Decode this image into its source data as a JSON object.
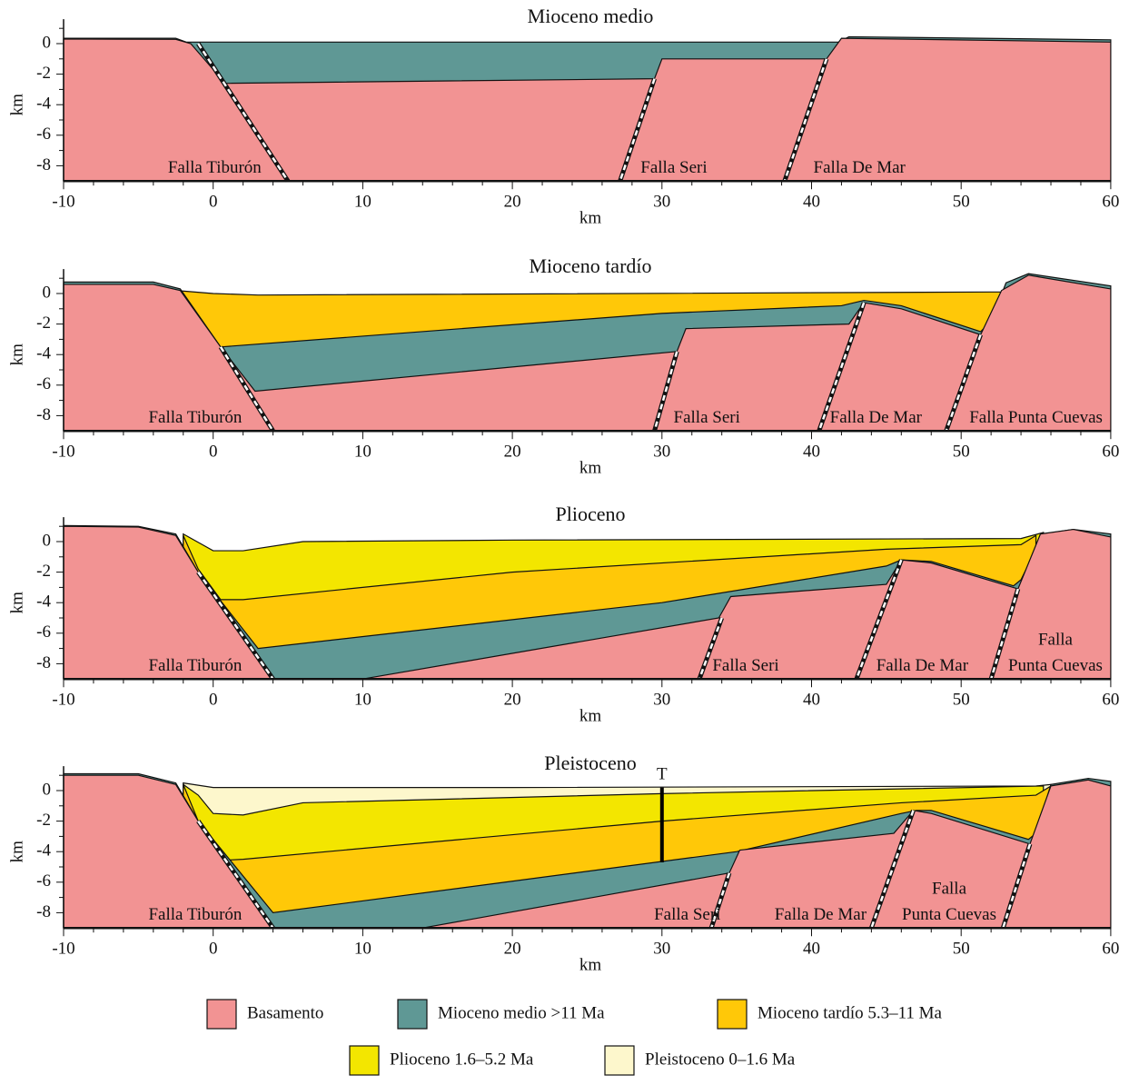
{
  "panels": [
    {
      "title": "Mioceno medio",
      "faults": [
        [
          "Falla Tiburón"
        ],
        [
          "Falla Seri"
        ],
        [
          "Falla De Mar"
        ]
      ]
    },
    {
      "title": "Mioceno tardío",
      "faults": [
        [
          "Falla Tiburón"
        ],
        [
          "Falla Seri"
        ],
        [
          "Falla De Mar"
        ],
        [
          "Falla Punta Cuevas"
        ]
      ]
    },
    {
      "title": "Plioceno",
      "faults": [
        [
          "Falla Tiburón"
        ],
        [
          "Falla Seri"
        ],
        [
          "Falla De Mar"
        ],
        [
          "Falla",
          "Punta Cuevas"
        ]
      ]
    },
    {
      "title": "Pleistoceno",
      "faults": [
        [
          "Falla Tiburón"
        ],
        [
          "Falla Seri"
        ],
        [
          "Falla De Mar"
        ],
        [
          "Falla",
          "Punta Cuevas"
        ]
      ],
      "well": "T"
    }
  ],
  "axis": {
    "xticks": [
      "-10",
      "0",
      "10",
      "20",
      "30",
      "40",
      "50",
      "60"
    ],
    "yticks": [
      "0",
      "-2",
      "-4",
      "-6",
      "-8"
    ],
    "xlabel": "km",
    "ylabel": "km"
  },
  "legend": [
    {
      "label": "Basamento",
      "color": "#f29393"
    },
    {
      "label": "Mioceno medio >11 Ma",
      "color": "#5f9895"
    },
    {
      "label": "Mioceno tardío 5.3–11 Ma",
      "color": "#ffc808"
    },
    {
      "label": "Plioceno 1.6–5.2 Ma",
      "color": "#f3e600"
    },
    {
      "label": "Pleistoceno 0–1.6 Ma",
      "color": "#fdf7cc"
    }
  ]
}
